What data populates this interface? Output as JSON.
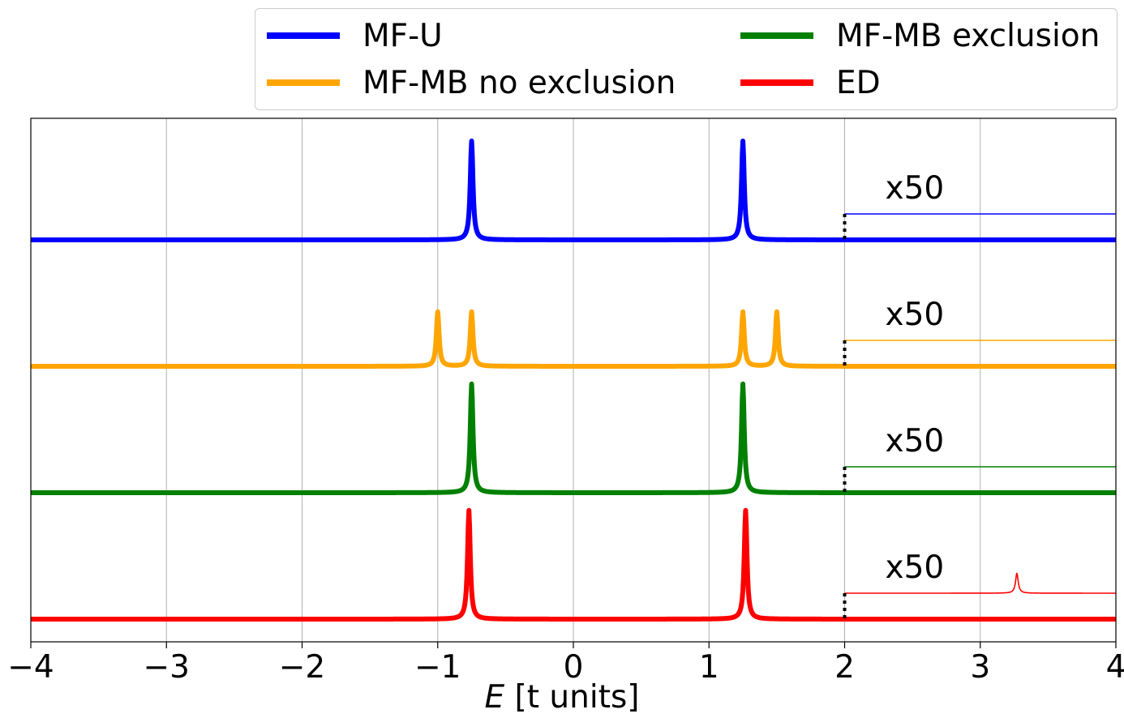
{
  "chart_data": {
    "type": "line",
    "xlabel_var": "E",
    "xlabel_unit": "[t units]",
    "ylabel": "",
    "xlim": [
      -4,
      4
    ],
    "xticks": [
      -4,
      -3,
      -2,
      -1,
      0,
      1,
      2,
      3,
      4
    ],
    "xtick_labels": [
      "−4",
      "−3",
      "−2",
      "−1",
      "0",
      "1",
      "2",
      "3",
      "4"
    ],
    "grid": "vertical",
    "legend_position": "top-right",
    "magnification_label": "x50",
    "magnification_start": 2,
    "peak_width": 0.012,
    "series": [
      {
        "name": "MF-U",
        "color": "#0000ff",
        "peaks": [
          -0.75,
          1.25
        ],
        "peak_height": 1.0,
        "inset_peaks": []
      },
      {
        "name": "MF-MB no exclusion",
        "color": "#ffa500",
        "peaks": [
          -1.0,
          -0.75,
          1.25,
          1.5
        ],
        "peak_height": 0.55,
        "inset_peaks": []
      },
      {
        "name": "MF-MB exclusion",
        "color": "#008000",
        "peaks": [
          -0.75,
          1.25
        ],
        "peak_height": 1.1,
        "inset_peaks": []
      },
      {
        "name": "ED",
        "color": "#ff0000",
        "peaks": [
          -0.77,
          1.27
        ],
        "peak_height": 1.1,
        "inset_peaks": [
          3.27
        ]
      }
    ]
  }
}
